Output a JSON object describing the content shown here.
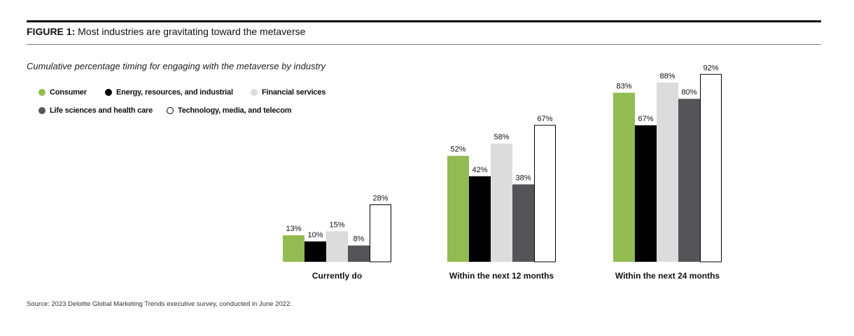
{
  "figure": {
    "label": "FIGURE 1:",
    "title": "Most industries are gravitating toward the metaverse",
    "subtitle": "Cumulative percentage timing for engaging with the metaverse by industry"
  },
  "source": "Source: 2023 Deloitte Global Marketing Trends executive survey, conducted in June 2022.",
  "chart_data": {
    "type": "bar",
    "categories": [
      "Currently do",
      "Within the next 12 months",
      "Within the next 24 months"
    ],
    "series": [
      {
        "name": "Consumer",
        "color": "#92bb52",
        "values": [
          13,
          52,
          83
        ]
      },
      {
        "name": "Energy, resources, and industrial",
        "color": "#000000",
        "values": [
          10,
          42,
          67
        ]
      },
      {
        "name": "Financial services",
        "color": "#dcdcdc",
        "values": [
          15,
          58,
          88
        ]
      },
      {
        "name": "Life sciences and health care",
        "color": "#555559",
        "values": [
          8,
          38,
          80
        ]
      },
      {
        "name": "Technology, media, and telecom",
        "color": "#ffffff",
        "outline": "#000000",
        "values": [
          28,
          67,
          92
        ]
      }
    ],
    "value_suffix": "%",
    "ylim": [
      0,
      100
    ],
    "grid": false,
    "legend_position": "top-left"
  }
}
